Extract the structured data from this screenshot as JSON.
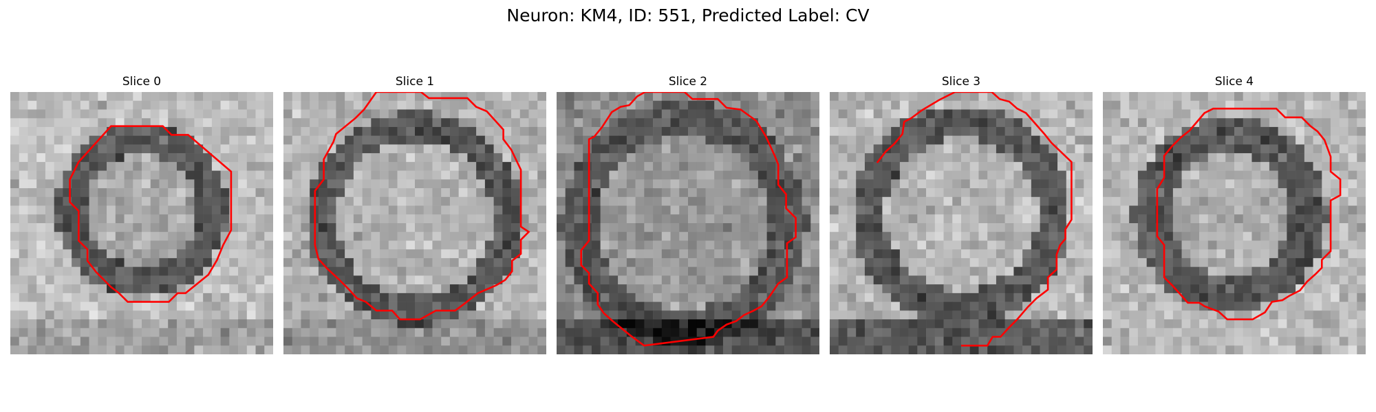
{
  "figure": {
    "title": "Neuron: KM4, ID: 551, Predicted Label: CV"
  },
  "panels": [
    {
      "title": "Slice 0"
    },
    {
      "title": "Slice 1"
    },
    {
      "title": "Slice 2"
    },
    {
      "title": "Slice 3"
    },
    {
      "title": "Slice 4"
    }
  ],
  "colors": {
    "contour": "#ff0000",
    "background": "#ffffff"
  }
}
